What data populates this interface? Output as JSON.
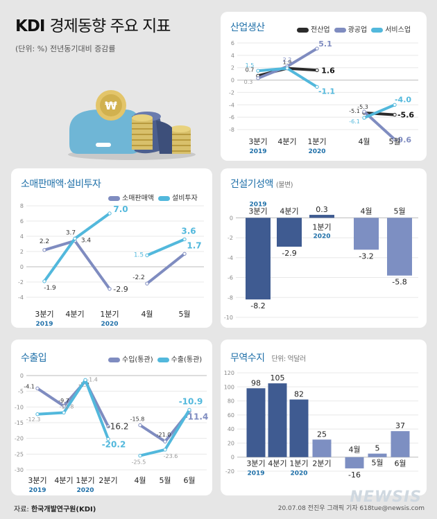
{
  "header": {
    "title_bold": "KDI",
    "title_rest": "경제동향 주요 지표",
    "subtitle": "(단위: %) 전년동기대비 증감률"
  },
  "footer": {
    "source_label": "자료:",
    "source_name": "한국개발연구원(KDI)",
    "credit": "20.07.08 전진우 그래픽 기자 618tue@newsis.com",
    "logo": "NEWSIS"
  },
  "colors": {
    "dark": "#2b2b2b",
    "purple": "#7f8cc0",
    "cyan": "#52b8dc",
    "bar_dark": "#3f5b91",
    "bar_light": "#7d8fc2",
    "title_blue": "#1e6fa8"
  },
  "chart_data": [
    {
      "id": "industrial",
      "type": "line",
      "title": "산업생산",
      "categories": [
        "3분기",
        "4분기",
        "1분기",
        "4월",
        "5월"
      ],
      "year_labels": [
        {
          "label": "2019",
          "category": "3분기"
        },
        {
          "label": "2020",
          "category": "1분기"
        }
      ],
      "ylim": [
        -8,
        6
      ],
      "yticks": [
        6,
        4,
        2,
        0,
        -2,
        -4,
        -6,
        -8
      ],
      "series": [
        {
          "name": "전산업",
          "color": "#2b2b2b",
          "values": [
            0.7,
            1.9,
            1.6,
            -5.3,
            -5.6
          ],
          "labels": [
            "0.7",
            "1.9",
            "1.6",
            "-5.3",
            "-5.6"
          ]
        },
        {
          "name": "광공업",
          "color": "#7f8cc0",
          "values": [
            0.3,
            2.2,
            5.1,
            -5.1,
            -9.6
          ],
          "labels": [
            "0.3",
            "2.2",
            "5.1",
            "-5.1",
            "-9.6"
          ]
        },
        {
          "name": "서비스업",
          "color": "#52b8dc",
          "values": [
            1.5,
            1.9,
            -1.1,
            -6.1,
            -4.0
          ],
          "labels": [
            "1.5",
            "",
            "-1.1",
            "-6.1",
            "-4.0"
          ]
        }
      ]
    },
    {
      "id": "retail_invest",
      "type": "line",
      "title": "소매판매액·설비투자",
      "categories": [
        "3분기",
        "4분기",
        "1분기",
        "4월",
        "5월"
      ],
      "year_labels": [
        {
          "label": "2019",
          "category": "3분기"
        },
        {
          "label": "2020",
          "category": "1분기"
        }
      ],
      "ylim": [
        -4,
        8
      ],
      "yticks": [
        8,
        6,
        4,
        2,
        0,
        -2,
        -4
      ],
      "series": [
        {
          "name": "소매판매액",
          "color": "#7f8cc0",
          "values": [
            2.2,
            3.4,
            -2.9,
            -2.2,
            1.7
          ],
          "labels": [
            "2.2",
            "3.4",
            "-2.9",
            "-2.2",
            "1.7"
          ]
        },
        {
          "name": "설비투자",
          "color": "#52b8dc",
          "values": [
            -1.9,
            3.7,
            7.0,
            1.5,
            3.6
          ],
          "labels": [
            "-1.9",
            "3.7",
            "7.0",
            "1.5",
            "3.6"
          ]
        }
      ]
    },
    {
      "id": "construction",
      "type": "bar",
      "title": "건설기성액",
      "unit": "(불변)",
      "categories": [
        "3분기",
        "4분기",
        "1분기",
        "4월",
        "5월"
      ],
      "year_labels": [
        {
          "label": "2019",
          "category": "3분기"
        },
        {
          "label": "2020",
          "category": "1분기"
        }
      ],
      "ylim": [
        -10,
        1
      ],
      "yticks": [
        0,
        -2,
        -4,
        -6,
        -8,
        -10
      ],
      "values": [
        -8.2,
        -2.9,
        0.3,
        -3.2,
        -5.8
      ],
      "labels": [
        "-8.2",
        "-2.9",
        "0.3",
        "-3.2",
        "-5.8"
      ],
      "bar_colors": [
        "#3f5b91",
        "#3f5b91",
        "#3f5b91",
        "#7d8fc2",
        "#7d8fc2"
      ]
    },
    {
      "id": "trade",
      "type": "line",
      "title": "수출입",
      "categories": [
        "3분기",
        "4분기",
        "1분기",
        "2분기",
        "4월",
        "5월",
        "6월"
      ],
      "year_labels": [
        {
          "label": "2019",
          "category": "3분기"
        },
        {
          "label": "2020",
          "category": "1분기"
        }
      ],
      "ylim": [
        -30,
        0
      ],
      "yticks": [
        0,
        -5,
        -10,
        -15,
        -20,
        -25,
        -30
      ],
      "series": [
        {
          "name": "수입(통관)",
          "color": "#7f8cc0",
          "values": [
            -4.1,
            -9.7,
            -1.8,
            -16.2,
            -15.8,
            -21.0,
            -11.4
          ],
          "labels": [
            "-4.1",
            "-9.7",
            "-1.8",
            "-16.2",
            "-15.8",
            "-21.0",
            "-11.4"
          ]
        },
        {
          "name": "수출(통관)",
          "color": "#52b8dc",
          "values": [
            -12.3,
            -11.8,
            -1.4,
            -20.2,
            -25.5,
            -23.6,
            -10.9
          ],
          "labels": [
            "-12.3",
            "-11.8",
            "-1.4",
            "-20.2",
            "-25.5",
            "-23.6",
            "-10.9"
          ]
        }
      ]
    },
    {
      "id": "trade_balance",
      "type": "bar",
      "title": "무역수지",
      "unit": "단위: 억달러",
      "categories": [
        "3분기",
        "4분기",
        "1분기",
        "2분기",
        "4월",
        "5월",
        "6월"
      ],
      "year_labels": [
        {
          "label": "2019",
          "category": "3분기"
        },
        {
          "label": "2020",
          "category": "1분기"
        }
      ],
      "ylim": [
        -20,
        120
      ],
      "yticks": [
        120,
        100,
        80,
        60,
        40,
        20,
        0,
        -20
      ],
      "values": [
        98,
        105,
        82,
        25,
        -16,
        5,
        37
      ],
      "labels": [
        "98",
        "105",
        "82",
        "25",
        "-16",
        "5",
        "37"
      ],
      "bar_colors": [
        "#3f5b91",
        "#3f5b91",
        "#3f5b91",
        "#7d8fc2",
        "#7d8fc2",
        "#7d8fc2",
        "#7d8fc2"
      ]
    }
  ]
}
